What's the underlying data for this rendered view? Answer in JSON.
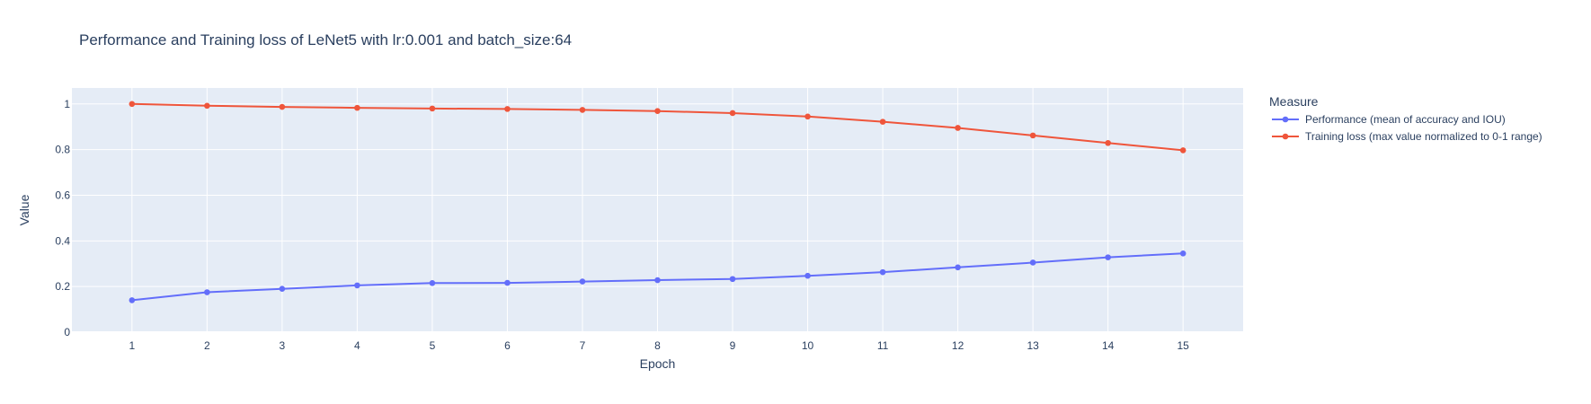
{
  "chart_data": {
    "type": "line",
    "title": "Performance and Training loss of LeNet5 with lr:0.001 and batch_size:64",
    "xlabel": "Epoch",
    "ylabel": "Value",
    "x": [
      1,
      2,
      3,
      4,
      5,
      6,
      7,
      8,
      9,
      10,
      11,
      12,
      13,
      14,
      15
    ],
    "xlim": [
      0.2,
      15.8
    ],
    "ylim": [
      0,
      1.07
    ],
    "xticks": [
      "1",
      "2",
      "3",
      "4",
      "5",
      "6",
      "7",
      "8",
      "9",
      "10",
      "11",
      "12",
      "13",
      "14",
      "15"
    ],
    "yticks": [
      {
        "value": 0,
        "label": "0"
      },
      {
        "value": 0.2,
        "label": "0.2"
      },
      {
        "value": 0.4,
        "label": "0.4"
      },
      {
        "value": 0.6,
        "label": "0.6"
      },
      {
        "value": 0.8,
        "label": "0.8"
      },
      {
        "value": 1,
        "label": "1"
      }
    ],
    "grid": true,
    "legend": {
      "title": "Measure",
      "placement": "top-right-outside"
    },
    "series": [
      {
        "name": "Performance (mean of accuracy and IOU)",
        "color": "#636efa",
        "values": [
          0.14,
          0.175,
          0.19,
          0.205,
          0.215,
          0.216,
          0.222,
          0.228,
          0.233,
          0.247,
          0.263,
          0.284,
          0.305,
          0.328,
          0.345
        ]
      },
      {
        "name": "Training loss (max value normalized to 0-1 range)",
        "color": "#ef553b",
        "values": [
          1.0,
          0.992,
          0.987,
          0.983,
          0.98,
          0.978,
          0.974,
          0.969,
          0.96,
          0.945,
          0.922,
          0.895,
          0.862,
          0.829,
          0.797
        ]
      }
    ]
  }
}
